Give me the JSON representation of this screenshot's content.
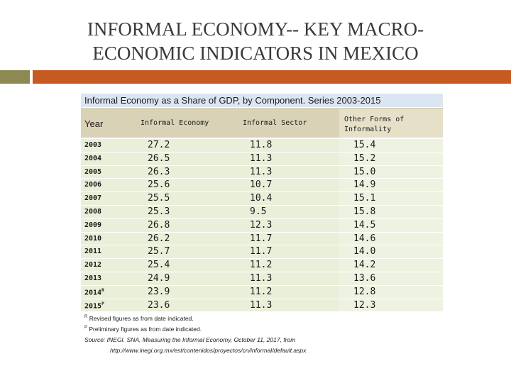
{
  "slide": {
    "title_line1": "INFORMAL ECONOMY-- KEY MACRO-",
    "title_line2": "ECONOMIC INDICATORS IN MEXICO"
  },
  "table": {
    "caption": "Informal Economy as a Share of GDP, by Component. Series 2003-2015",
    "headers": {
      "year": "Year",
      "informal_economy": "Informal Economy",
      "informal_sector": "Informal Sector",
      "other_forms": "Other Forms of Informality"
    },
    "rows": [
      {
        "year": "2003",
        "sup": "",
        "informal_economy": "27.2",
        "informal_sector": "11.8",
        "other_forms": "15.4"
      },
      {
        "year": "2004",
        "sup": "",
        "informal_economy": "26.5",
        "informal_sector": "11.3",
        "other_forms": "15.2"
      },
      {
        "year": "2005",
        "sup": "",
        "informal_economy": "26.3",
        "informal_sector": "11.3",
        "other_forms": "15.0"
      },
      {
        "year": "2006",
        "sup": "",
        "informal_economy": "25.6",
        "informal_sector": "10.7",
        "other_forms": "14.9"
      },
      {
        "year": "2007",
        "sup": "",
        "informal_economy": "25.5",
        "informal_sector": "10.4",
        "other_forms": "15.1"
      },
      {
        "year": "2008",
        "sup": "",
        "informal_economy": "25.3",
        "informal_sector": "9.5",
        "other_forms": "15.8"
      },
      {
        "year": "2009",
        "sup": "",
        "informal_economy": "26.8",
        "informal_sector": "12.3",
        "other_forms": "14.5"
      },
      {
        "year": "2010",
        "sup": "",
        "informal_economy": "26.2",
        "informal_sector": "11.7",
        "other_forms": "14.6"
      },
      {
        "year": "2011",
        "sup": "",
        "informal_economy": "25.7",
        "informal_sector": "11.7",
        "other_forms": "14.0"
      },
      {
        "year": "2012",
        "sup": "",
        "informal_economy": "25.4",
        "informal_sector": "11.2",
        "other_forms": "14.2"
      },
      {
        "year": "2013",
        "sup": "",
        "informal_economy": "24.9",
        "informal_sector": "11.3",
        "other_forms": "13.6"
      },
      {
        "year": "2014",
        "sup": "R",
        "informal_economy": "23.9",
        "informal_sector": "11.2",
        "other_forms": "12.8"
      },
      {
        "year": "2015",
        "sup": "P",
        "informal_economy": "23.6",
        "informal_sector": "11.3",
        "other_forms": "12.3"
      }
    ]
  },
  "notes": {
    "revised_marker": "R",
    "revised_text": " Revised figures as from date indicated.",
    "preliminary_marker": "P",
    "preliminary_text": " Preliminary figures as from date indicated.",
    "source": "Source: INEGI. SNA, Measuring the Informal Economy, October 11, 2017, from",
    "url": "http://www.inegi.org.mx/est/contenidos/proyectos/cn/informal/default.aspx"
  },
  "colors": {
    "accent_orange": "#c55a23",
    "accent_olive": "#8c8a52",
    "caption_bg": "#dce6f2",
    "header_bg": "#d9d2b6",
    "row_bg": "#e9efd9"
  }
}
